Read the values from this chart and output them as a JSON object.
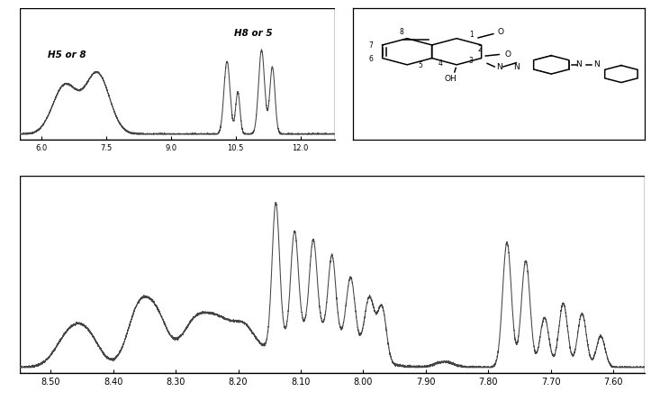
{
  "background_color": "#ffffff",
  "line_color": "#444444",
  "inset_label_h5or8": "H5 or 8",
  "inset_label_h8or5": "H8 or 5",
  "fig_width": 7.23,
  "fig_height": 4.55,
  "inset_ticks": [
    6.0,
    7.5,
    9.0,
    10.5,
    12.0
  ],
  "inset_tick_labels": [
    "6.0",
    "7.5",
    "9.0",
    "10.5",
    "12.0"
  ],
  "main_ticks": [
    8.5,
    8.4,
    8.3,
    8.2,
    8.1,
    8.0,
    7.9,
    7.8,
    7.7,
    7.6
  ],
  "main_tick_labels": [
    "8.50",
    "8.40",
    "8.30",
    "8.20",
    "8.10",
    "8.00",
    "7.90",
    "7.80",
    "7.70",
    "7.60"
  ]
}
